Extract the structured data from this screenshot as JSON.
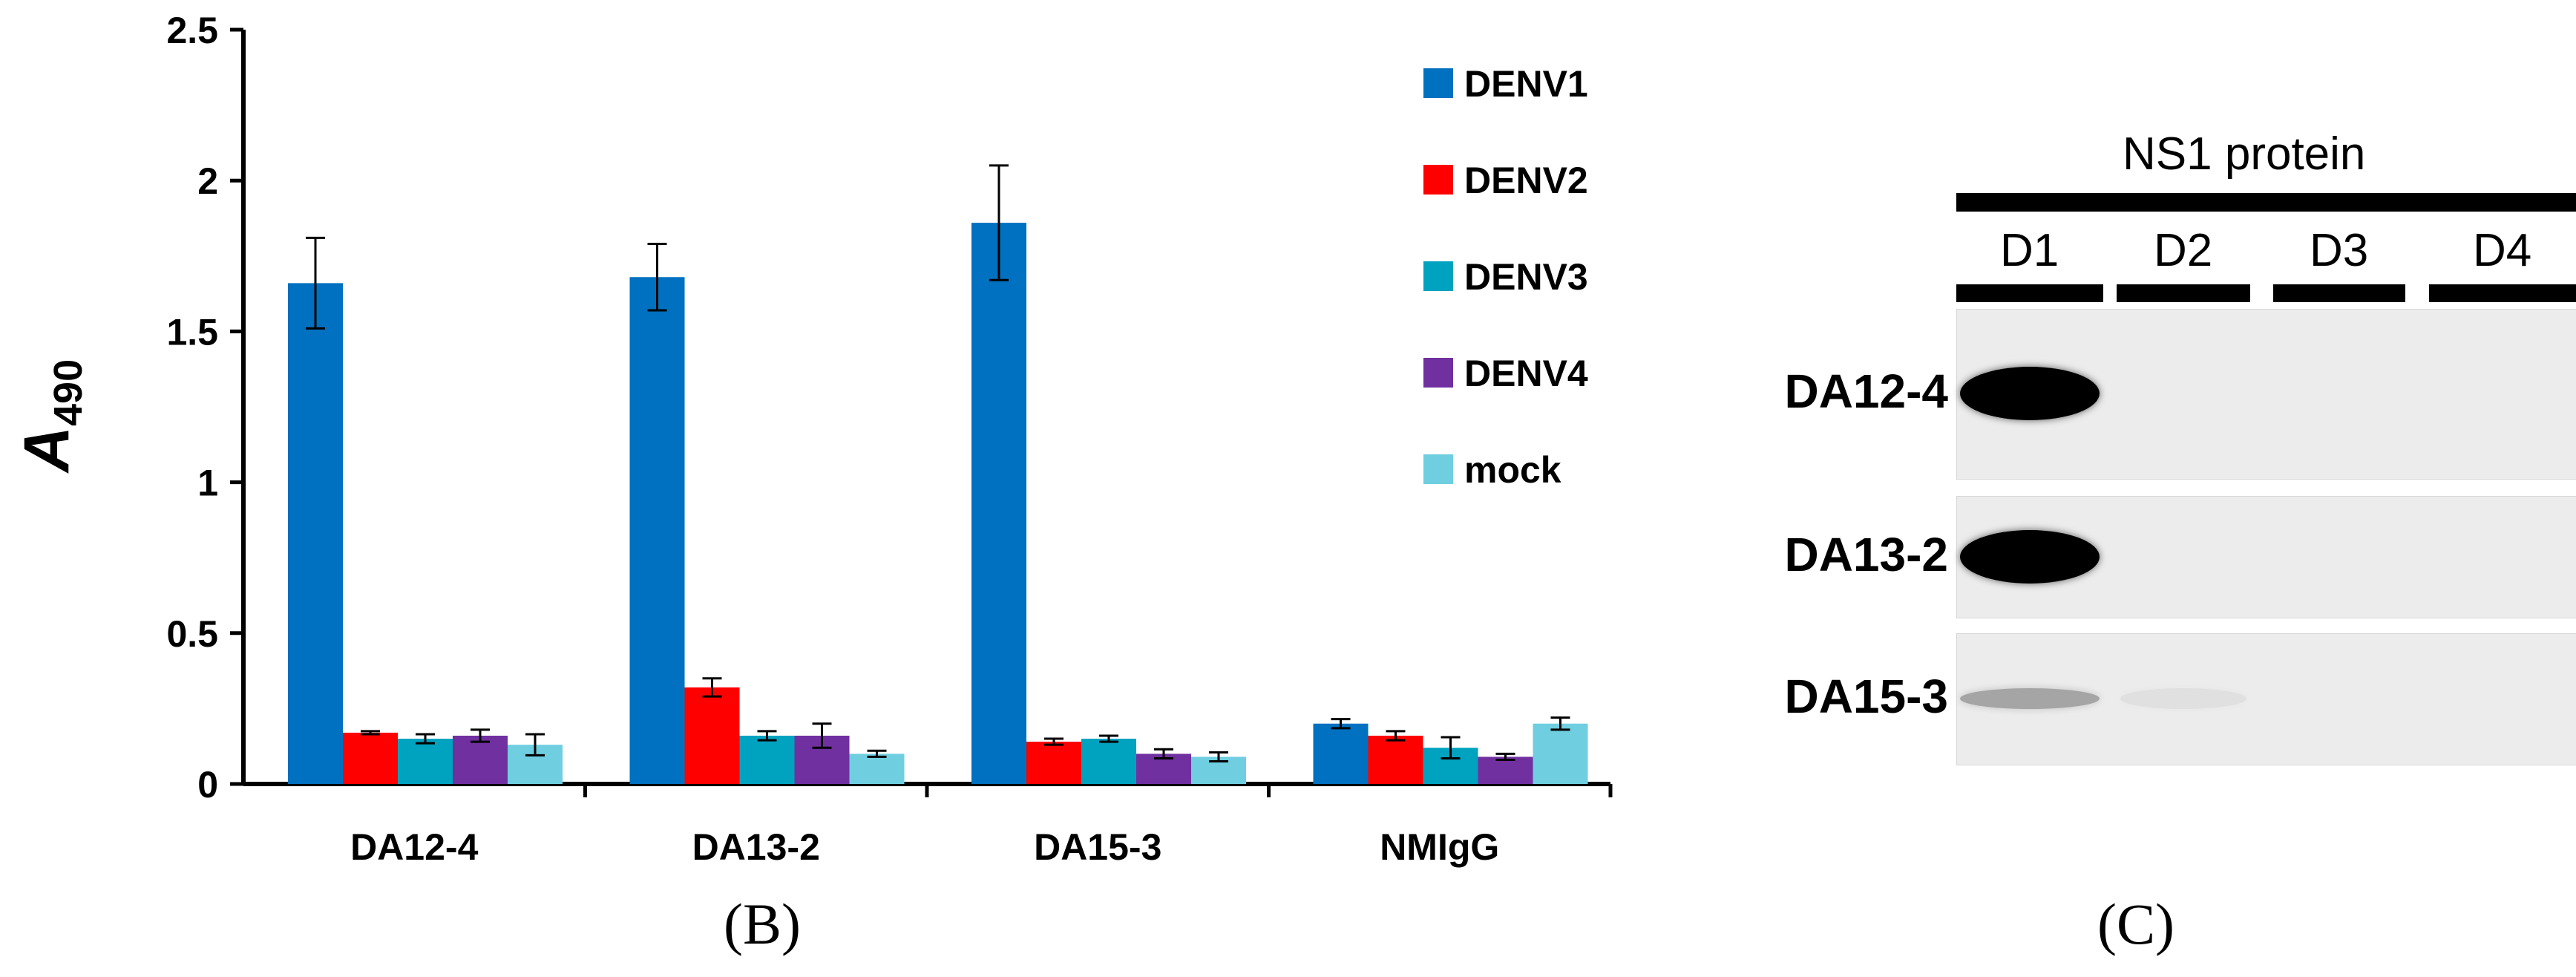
{
  "chart_data": {
    "type": "bar",
    "categories": [
      "DA12-4",
      "DA13-2",
      "DA15-3",
      "NMIgG"
    ],
    "series": [
      {
        "name": "DENV1",
        "color": "#0070C0",
        "values": [
          1.66,
          1.68,
          1.86,
          0.2
        ],
        "errors": [
          0.15,
          0.11,
          0.19,
          0.015
        ]
      },
      {
        "name": "DENV2",
        "color": "#FF0000",
        "values": [
          0.17,
          0.32,
          0.14,
          0.16
        ],
        "errors": [
          0.005,
          0.03,
          0.01,
          0.015
        ]
      },
      {
        "name": "DENV3",
        "color": "#00A3BF",
        "values": [
          0.15,
          0.16,
          0.15,
          0.12
        ],
        "errors": [
          0.015,
          0.015,
          0.01,
          0.035
        ]
      },
      {
        "name": "DENV4",
        "color": "#7030A0",
        "values": [
          0.16,
          0.16,
          0.1,
          0.09
        ],
        "errors": [
          0.02,
          0.04,
          0.015,
          0.01
        ]
      },
      {
        "name": "mock",
        "color": "#6FCFE0",
        "values": [
          0.13,
          0.1,
          0.09,
          0.2
        ],
        "errors": [
          0.035,
          0.01,
          0.015,
          0.02
        ]
      }
    ],
    "ylim": [
      0,
      2.5
    ],
    "yticks": [
      "0",
      "0.5",
      "1",
      "1.5",
      "2",
      "2.5"
    ],
    "ylabel_main": "A",
    "ylabel_sub": "490",
    "legend_position": "top-right"
  },
  "panel_b_label": "(B)",
  "panel_c_label": "(C)",
  "blot": {
    "title": "NS1 protein",
    "lanes": [
      "D1",
      "D2",
      "D3",
      "D4"
    ],
    "rows": [
      "DA12-4",
      "DA13-2",
      "DA15-3"
    ],
    "band_intensity": [
      [
        1.0,
        0,
        0,
        0
      ],
      [
        1.0,
        0,
        0,
        0
      ],
      [
        0.3,
        0.05,
        0,
        0
      ]
    ]
  }
}
